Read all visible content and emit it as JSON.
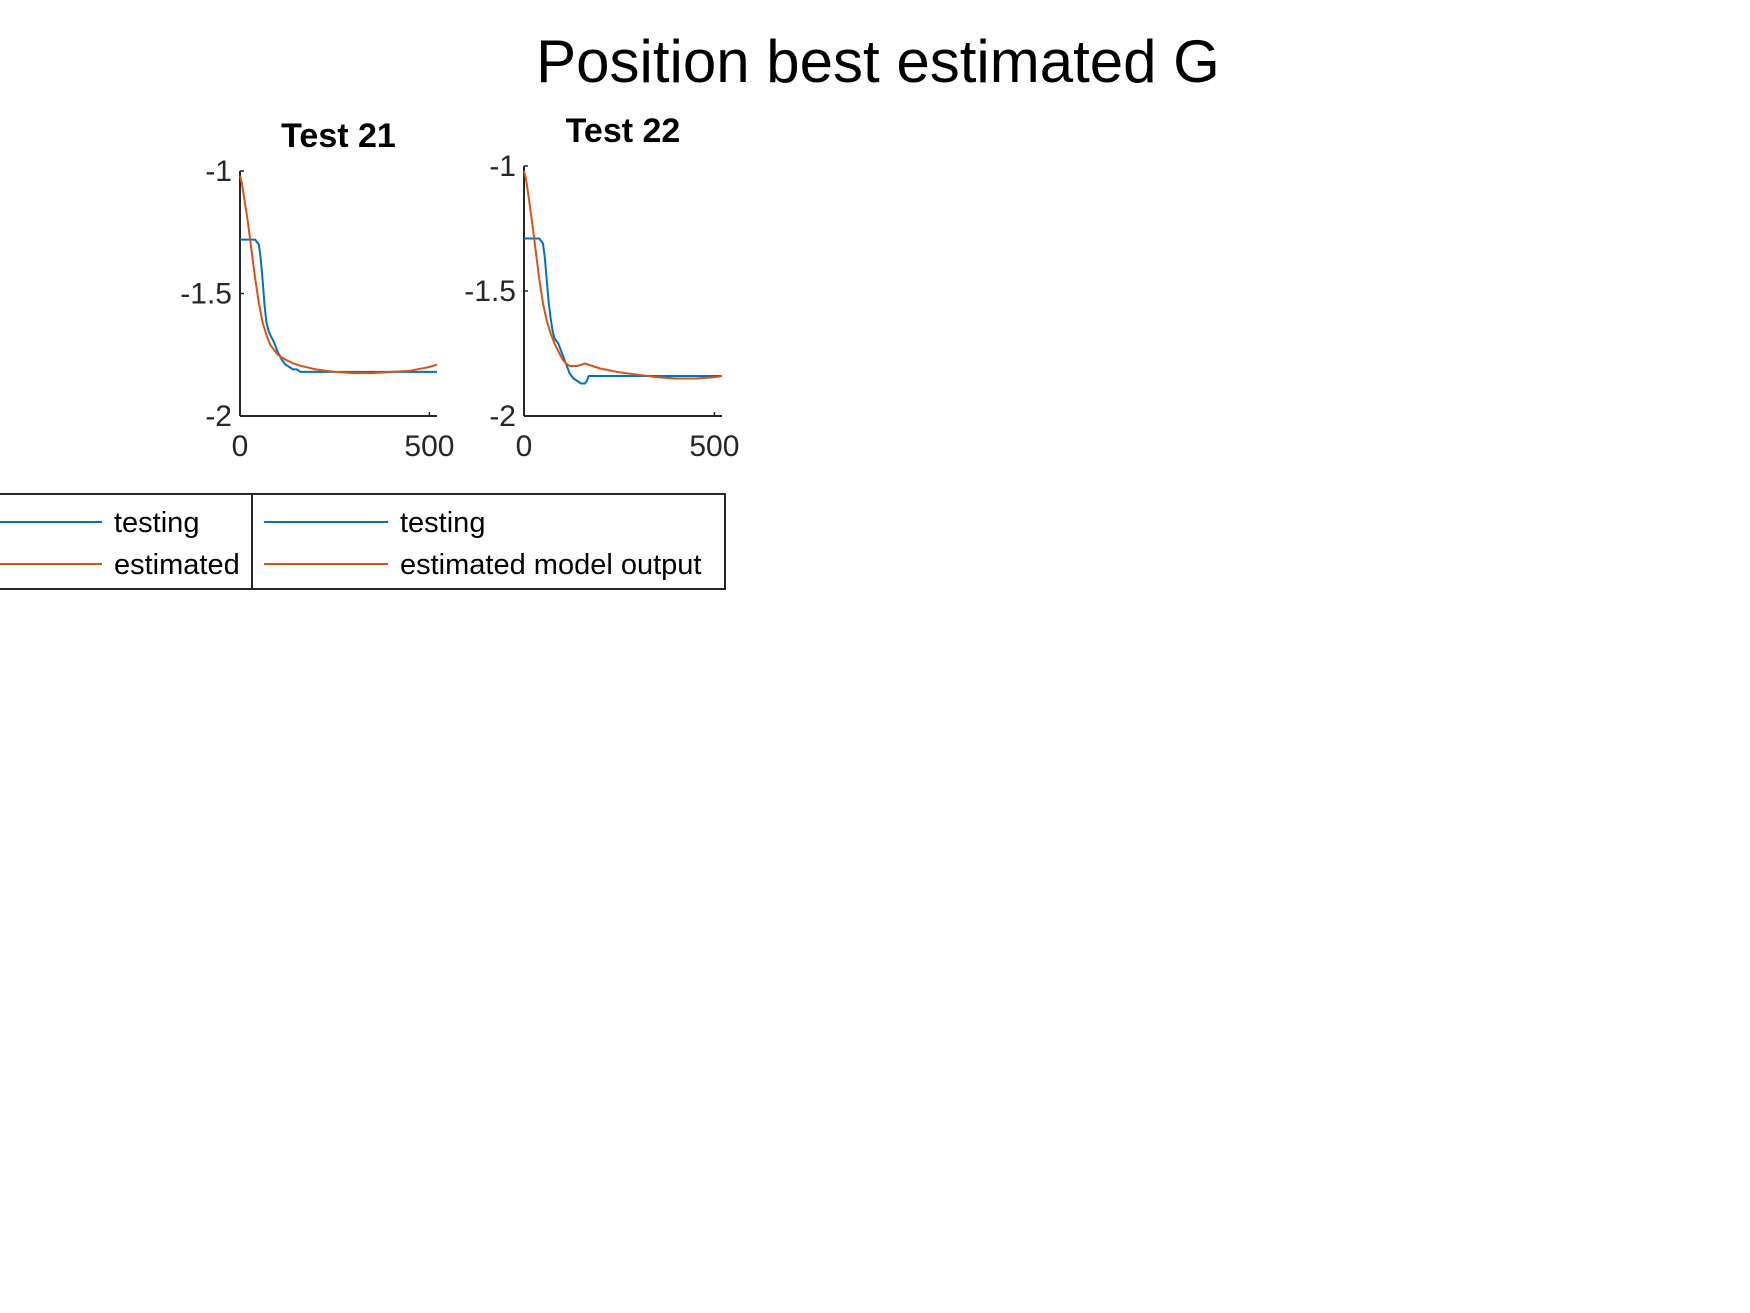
{
  "figure": {
    "title": "Position best estimated G"
  },
  "colors": {
    "testing": "#0072BD",
    "estimated": "#D95319",
    "axis": "#262626",
    "text": "#000000"
  },
  "chart_data": [
    {
      "type": "line",
      "title": "Test 21",
      "xlabel": "",
      "ylabel": "",
      "xlim": [
        0,
        520
      ],
      "ylim": [
        -2,
        -1
      ],
      "xticks": [
        0,
        500
      ],
      "xtick_labels": [
        "0",
        "500"
      ],
      "yticks": [
        -2,
        -1.5,
        -1
      ],
      "ytick_labels": [
        "-2",
        "-1.5",
        "-1"
      ],
      "grid": false,
      "legend_position": "below",
      "series": [
        {
          "name": "testing",
          "color": "#0072BD",
          "x": [
            0,
            20,
            40,
            50,
            55,
            60,
            65,
            70,
            75,
            80,
            90,
            100,
            110,
            120,
            130,
            140,
            150,
            160,
            180,
            200,
            300,
            400,
            520
          ],
          "y": [
            -1.28,
            -1.28,
            -1.28,
            -1.3,
            -1.36,
            -1.45,
            -1.55,
            -1.62,
            -1.65,
            -1.67,
            -1.7,
            -1.74,
            -1.77,
            -1.79,
            -1.8,
            -1.81,
            -1.81,
            -1.82,
            -1.82,
            -1.82,
            -1.82,
            -1.82,
            -1.82
          ]
        },
        {
          "name": "estimated",
          "color": "#D95319",
          "x": [
            0,
            5,
            10,
            20,
            30,
            40,
            50,
            60,
            70,
            80,
            90,
            100,
            120,
            140,
            160,
            200,
            250,
            300,
            350,
            400,
            450,
            500,
            520
          ],
          "y": [
            -1.02,
            -1.05,
            -1.1,
            -1.2,
            -1.32,
            -1.44,
            -1.54,
            -1.62,
            -1.67,
            -1.71,
            -1.73,
            -1.75,
            -1.77,
            -1.785,
            -1.795,
            -1.81,
            -1.82,
            -1.825,
            -1.825,
            -1.82,
            -1.815,
            -1.8,
            -1.79
          ]
        }
      ]
    },
    {
      "type": "line",
      "title": "Test 22",
      "xlabel": "",
      "ylabel": "",
      "xlim": [
        0,
        520
      ],
      "ylim": [
        -2,
        -1
      ],
      "xticks": [
        0,
        500
      ],
      "xtick_labels": [
        "0",
        "500"
      ],
      "yticks": [
        -2,
        -1.5,
        -1
      ],
      "ytick_labels": [
        "-2",
        "-1.5",
        "-1"
      ],
      "grid": false,
      "legend_position": "below",
      "series": [
        {
          "name": "testing",
          "color": "#0072BD",
          "x": [
            0,
            20,
            40,
            50,
            55,
            60,
            65,
            70,
            75,
            80,
            90,
            100,
            110,
            120,
            130,
            140,
            150,
            155,
            160,
            165,
            170,
            175,
            180,
            200,
            300,
            400,
            520
          ],
          "y": [
            -1.29,
            -1.29,
            -1.29,
            -1.31,
            -1.37,
            -1.46,
            -1.55,
            -1.61,
            -1.66,
            -1.69,
            -1.71,
            -1.75,
            -1.79,
            -1.83,
            -1.85,
            -1.86,
            -1.87,
            -1.87,
            -1.87,
            -1.86,
            -1.84,
            -1.84,
            -1.84,
            -1.84,
            -1.84,
            -1.84,
            -1.84
          ]
        },
        {
          "name": "estimated model output",
          "color": "#D95319",
          "x": [
            0,
            5,
            10,
            20,
            30,
            40,
            50,
            60,
            70,
            80,
            90,
            100,
            110,
            120,
            130,
            140,
            150,
            160,
            170,
            180,
            200,
            250,
            300,
            350,
            400,
            450,
            500,
            520
          ],
          "y": [
            -1.02,
            -1.05,
            -1.1,
            -1.21,
            -1.33,
            -1.45,
            -1.55,
            -1.62,
            -1.67,
            -1.71,
            -1.74,
            -1.77,
            -1.79,
            -1.8,
            -1.8,
            -1.8,
            -1.795,
            -1.79,
            -1.795,
            -1.8,
            -1.81,
            -1.825,
            -1.835,
            -1.845,
            -1.85,
            -1.85,
            -1.845,
            -1.84
          ]
        }
      ]
    }
  ]
}
